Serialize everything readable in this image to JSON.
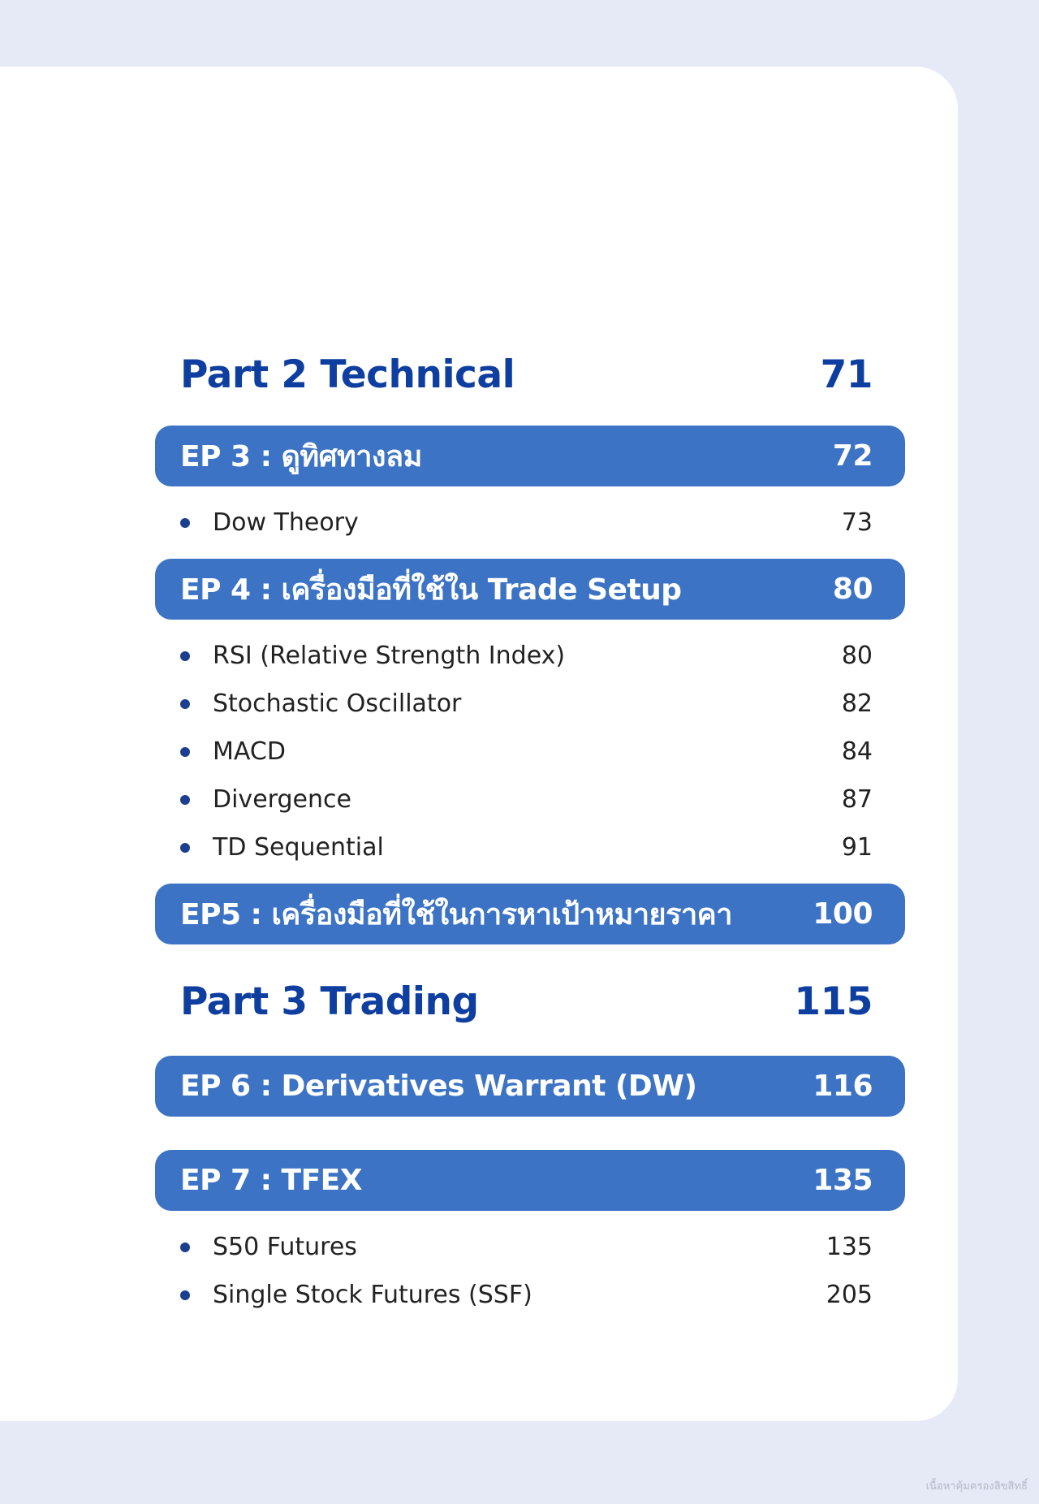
{
  "sections": {
    "part2": {
      "title": "Part 2 Technical",
      "page": "71"
    },
    "ep3": {
      "title": "EP 3 : ดูทิศทางลม",
      "page": "72",
      "items": [
        {
          "label": "Dow Theory",
          "page": "73"
        }
      ]
    },
    "ep4": {
      "title": "EP 4 : เครื่องมือที่ใช้ใน Trade Setup",
      "page": "80",
      "items": [
        {
          "label": "RSI (Relative Strength Index)",
          "page": "80"
        },
        {
          "label": "Stochastic Oscillator",
          "page": "82"
        },
        {
          "label": "MACD",
          "page": "84"
        },
        {
          "label": "Divergence",
          "page": "87"
        },
        {
          "label": "TD Sequential",
          "page": "91"
        }
      ]
    },
    "ep5": {
      "title": "EP5 : เครื่องมือที่ใช้ในการหาเป้าหมายราคา",
      "page": "100"
    },
    "part3": {
      "title": "Part 3 Trading",
      "page": "115"
    },
    "ep6": {
      "title": "EP 6 : Derivatives Warrant (DW)",
      "page": "116"
    },
    "ep7": {
      "title": "EP 7 : TFEX",
      "page": "135",
      "items": [
        {
          "label": "S50 Futures",
          "page": "135"
        },
        {
          "label": "Single Stock Futures (SSF)",
          "page": "205"
        }
      ]
    }
  },
  "watermark": "เนื้อหาคุ้มครองลิขสิทธิ์",
  "colors": {
    "background": "#e6e9f6",
    "card": "#ffffff",
    "part_heading": "#0d3ea0",
    "ep_bar": "#3c73c4",
    "bullet": "#1b3f8f"
  }
}
